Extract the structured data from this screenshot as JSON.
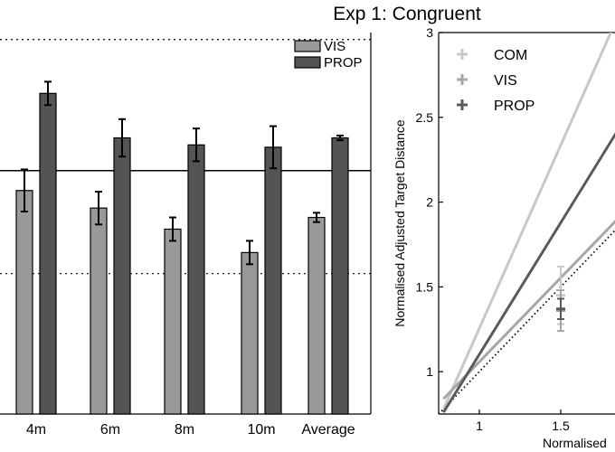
{
  "title": "Exp 1: Congruent",
  "chart_data": [
    {
      "type": "bar",
      "categories": [
        "4m",
        "6m",
        "8m",
        "10m",
        "Average"
      ],
      "series": [
        {
          "name": "VIS",
          "color": "#999999",
          "values": [
            0.955,
            0.88,
            0.79,
            0.69,
            0.84
          ],
          "errors": [
            0.09,
            0.07,
            0.05,
            0.05,
            0.02
          ]
        },
        {
          "name": "PROP",
          "color": "#545454",
          "values": [
            1.37,
            1.18,
            1.15,
            1.14,
            1.18
          ],
          "errors": [
            0.05,
            0.08,
            0.07,
            0.09,
            0.01
          ]
        }
      ],
      "reference_lines": [
        {
          "y": 1.04,
          "style": "solid"
        },
        {
          "y": 0.6,
          "style": "dotted"
        },
        {
          "y": 1.6,
          "style": "dotted"
        }
      ],
      "ylim": [
        0,
        1.63
      ],
      "legend_position": "top-right"
    },
    {
      "type": "line",
      "ylabel": "Normalised Adjusted Target Distance",
      "xlabel": "Normalised",
      "xlim": [
        0.75,
        1.75
      ],
      "ylim": [
        0.75,
        3.0
      ],
      "xticks": [
        1,
        1.5
      ],
      "yticks": [
        1,
        1.5,
        2,
        2.5,
        3
      ],
      "xtick_labels": [
        "1",
        "1.5"
      ],
      "ytick_labels": [
        "1",
        "1.5",
        "2",
        "2.5",
        "3"
      ],
      "legend_position": "top-left",
      "identity_line": true,
      "series": [
        {
          "name": "COM",
          "color": "#c8c8c8",
          "line": [
            [
              0.78,
              0.78
            ],
            [
              1.9,
              3.2
            ]
          ],
          "points": [
            {
              "x": 1.5,
              "y": 1.45,
              "err": 0.17
            }
          ]
        },
        {
          "name": "VIS",
          "color": "#a6a6a6",
          "line": [
            [
              0.78,
              0.84
            ],
            [
              1.9,
              1.95
            ]
          ],
          "points": [
            {
              "x": 1.5,
              "y": 1.36,
              "err": 0.12
            }
          ]
        },
        {
          "name": "PROP",
          "color": "#5a5a5a",
          "line": [
            [
              0.78,
              0.76
            ],
            [
              1.9,
              2.5
            ]
          ],
          "points": [
            {
              "x": 1.5,
              "y": 1.37,
              "err": 0.06
            }
          ]
        }
      ]
    }
  ]
}
